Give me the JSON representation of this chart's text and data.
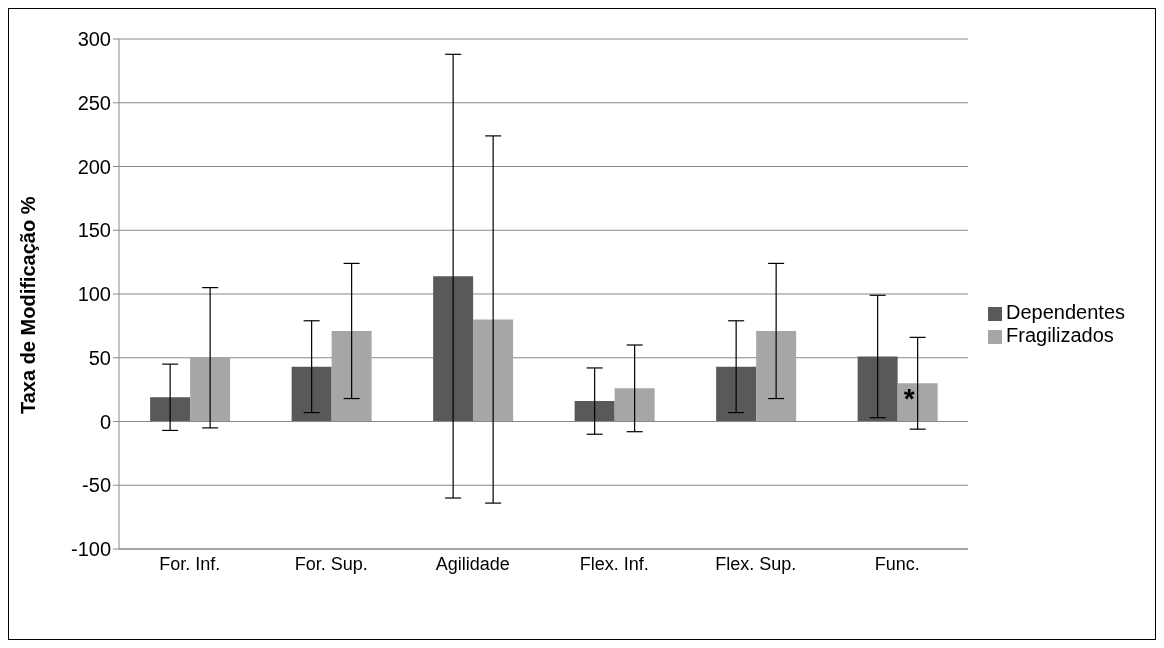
{
  "chart_data": {
    "type": "bar",
    "ylabel": "Taxa de Modificação %",
    "categories": [
      "For. Inf.",
      "For. Sup.",
      "Agilidade",
      "Flex. Inf.",
      "Flex. Sup.",
      "Func."
    ],
    "series": [
      {
        "name": "Dependentes",
        "color": "#595959",
        "values": [
          19,
          43,
          114,
          16,
          43,
          51
        ],
        "errors": [
          26,
          36,
          174,
          26,
          36,
          48
        ]
      },
      {
        "name": "Fragilizados",
        "color": "#a6a6a6",
        "values": [
          50,
          71,
          80,
          26,
          71,
          30
        ],
        "errors": [
          55,
          53,
          144,
          34,
          53,
          36
        ]
      }
    ],
    "ylim": [
      -100,
      300
    ],
    "yticks": [
      -100,
      -50,
      0,
      50,
      100,
      150,
      200,
      250,
      300
    ],
    "grid": "y",
    "legend": "right",
    "annotations": [
      {
        "text": "*",
        "x": "Func.",
        "y": 20
      }
    ]
  }
}
